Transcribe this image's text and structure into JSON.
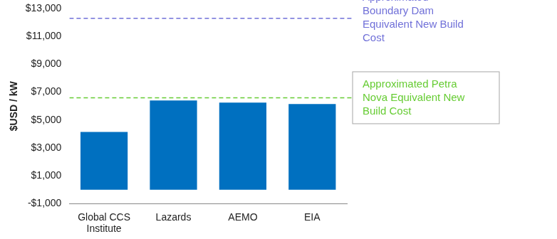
{
  "chart_data": {
    "type": "bar",
    "categories": [
      "Global CCS Institute",
      "Lazards",
      "AEMO",
      "EIA"
    ],
    "values": [
      4150,
      6400,
      6250,
      6150
    ],
    "color": "#0070c0",
    "y_label": "$USD / kW",
    "ylim": [
      -1000,
      13000
    ],
    "yticks": [
      {
        "value": -1000,
        "label": "-$1,000"
      },
      {
        "value": 1000,
        "label": "$1,000"
      },
      {
        "value": 3000,
        "label": "$3,000"
      },
      {
        "value": 5000,
        "label": "$5,000"
      },
      {
        "value": 7000,
        "label": "$7,000"
      },
      {
        "value": 9000,
        "label": "$9,000"
      },
      {
        "value": 11000,
        "label": "$11,000"
      },
      {
        "value": 13000,
        "label": "$13,000"
      }
    ],
    "grid": false,
    "annotations": [
      {
        "value": 12300,
        "text": "Approximated Boundary Dam Equivalent New Build Cost",
        "color": "#7070d8"
      },
      {
        "value": 6600,
        "text": "Approximated Petra Nova Equivalent New Build Cost",
        "color": "#66cc33"
      }
    ]
  }
}
